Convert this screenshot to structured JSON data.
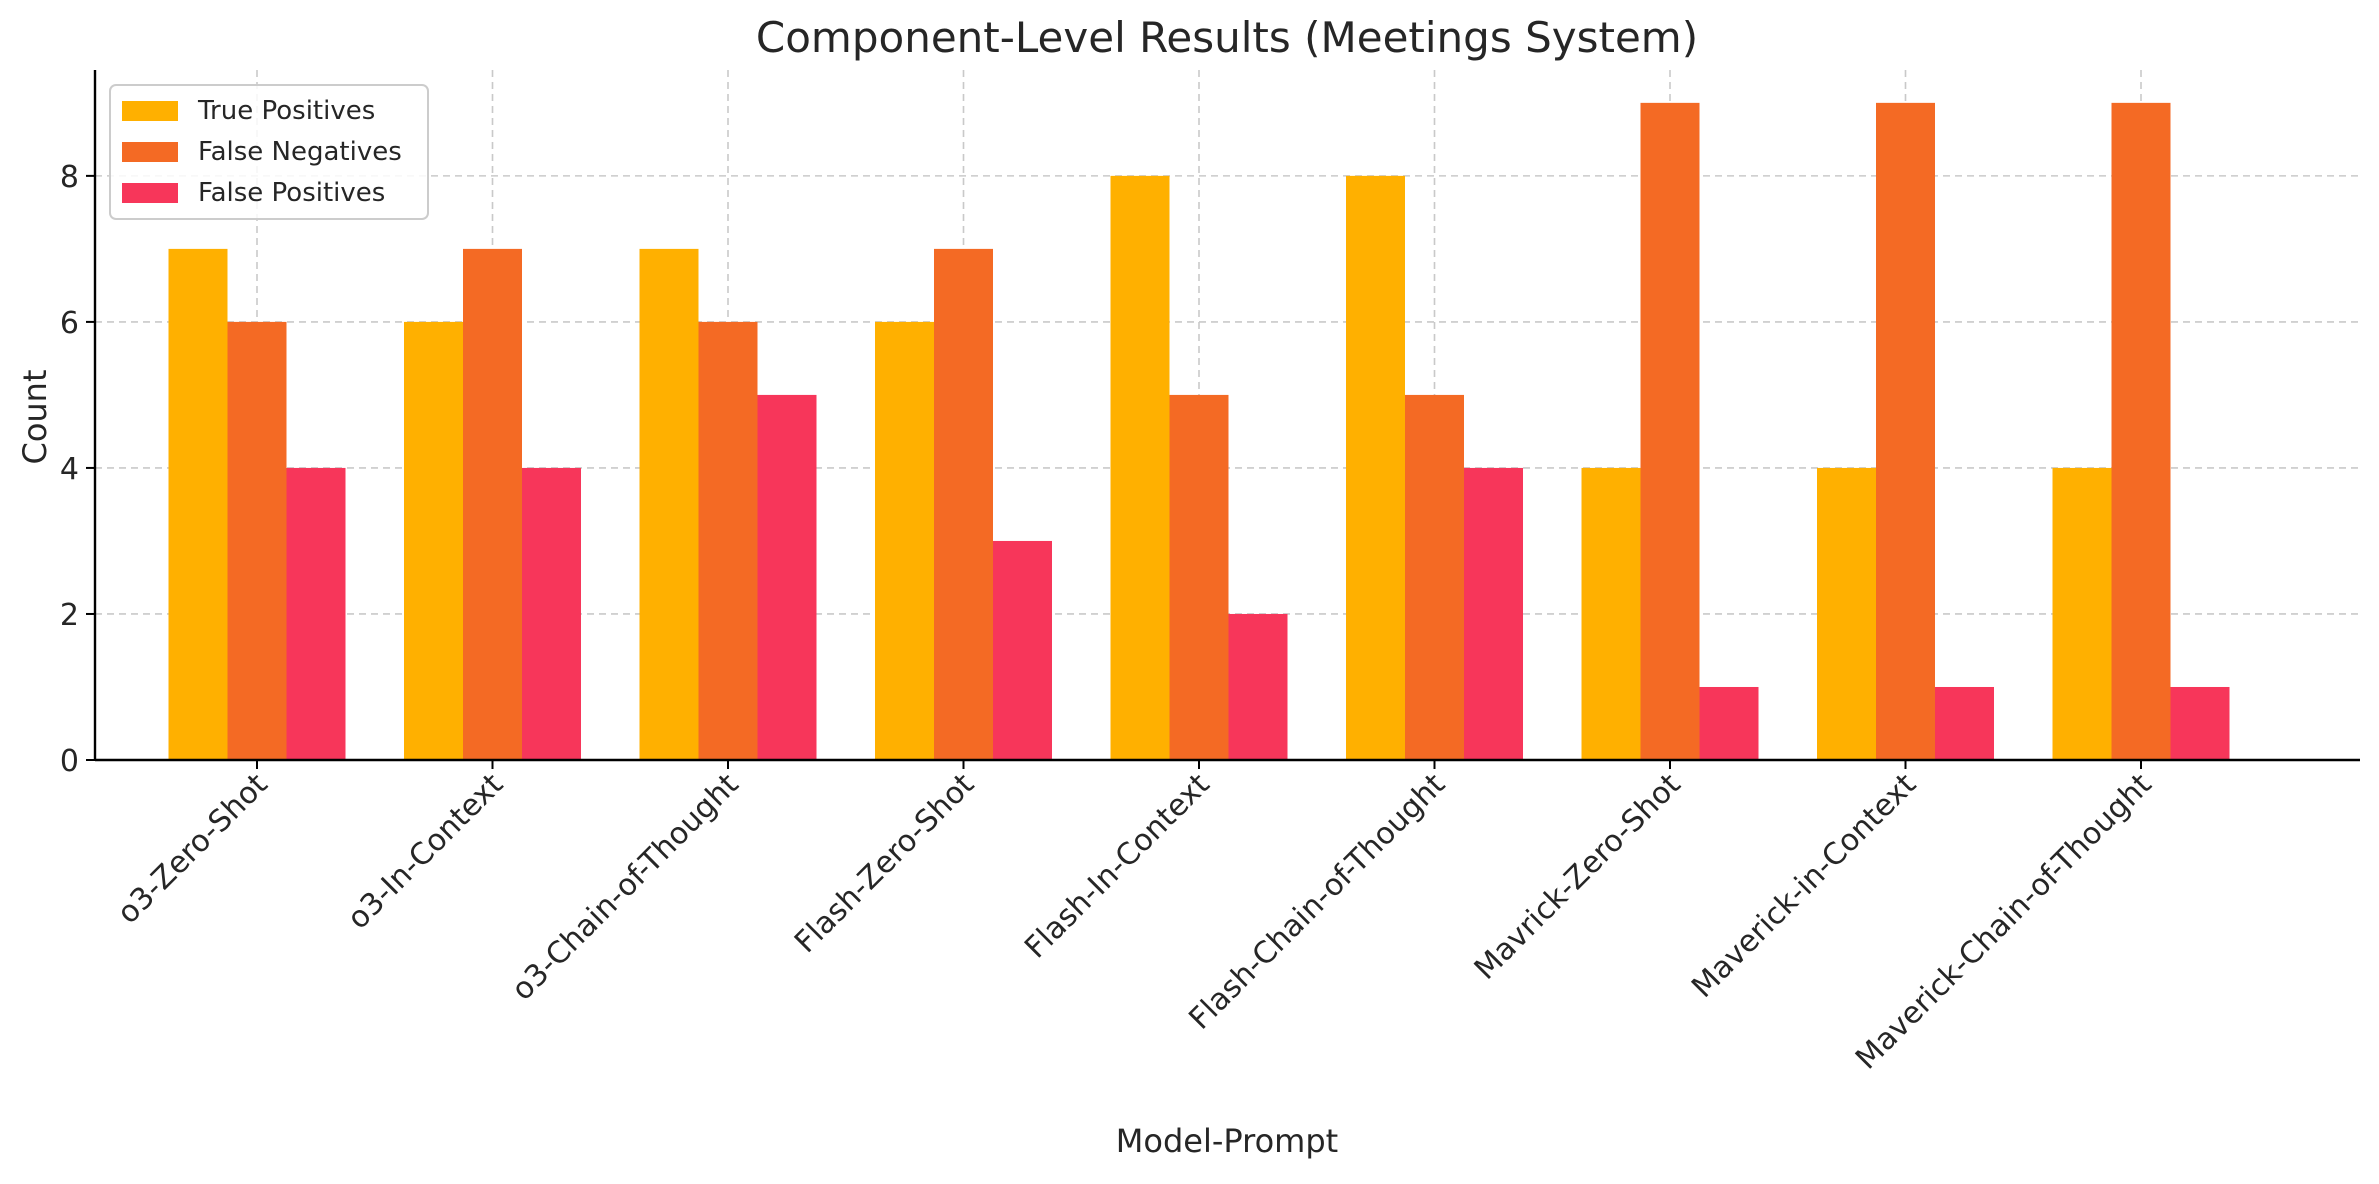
{
  "chart_data": {
    "type": "bar",
    "title": "Component-Level Results (Meetings System)",
    "xlabel": "Model-Prompt",
    "ylabel": "Count",
    "ylim": [
      0,
      9.45
    ],
    "yticks": [
      0,
      2,
      4,
      6,
      8
    ],
    "grid": true,
    "legend_position": "top-left",
    "categories": [
      "o3-Zero-Shot",
      "o3-In-Context",
      "o3-Chain-of-Thought",
      "Flash-Zero-Shot",
      "Flash-In-Context",
      "Flash-Chain-of-Thought",
      "Mavrick-Zero-Shot",
      "Maverick-in-Context",
      "Maverick-Chain-of-Thought"
    ],
    "series": [
      {
        "name": "True Positives",
        "color": "#FFB000",
        "values": [
          7,
          6,
          7,
          6,
          8,
          8,
          4,
          4,
          4
        ]
      },
      {
        "name": "False Negatives",
        "color": "#F46A24",
        "values": [
          6,
          7,
          6,
          7,
          5,
          5,
          9,
          9,
          9
        ]
      },
      {
        "name": "False Positives",
        "color": "#F7365A",
        "values": [
          4,
          4,
          5,
          3,
          2,
          4,
          1,
          1,
          1
        ]
      }
    ]
  }
}
